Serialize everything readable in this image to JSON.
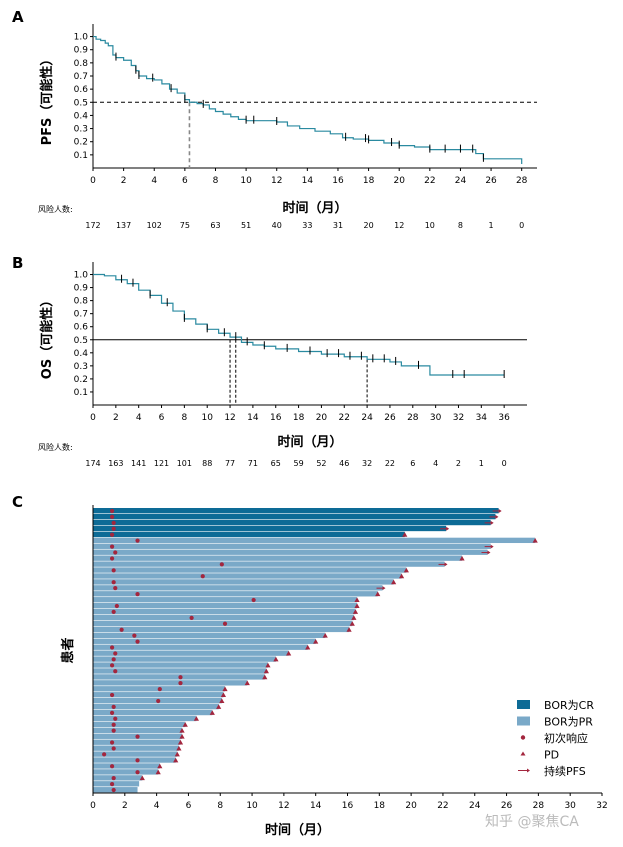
{
  "panel_labels": [
    "A",
    "B",
    "C"
  ],
  "risk_label": "风险人数:",
  "watermark": "知乎 @聚焦CA",
  "chart_data": [
    {
      "type": "line",
      "ylabel": "PFS（可能性）",
      "xlabel": "时间（月）",
      "xlim": [
        0,
        29
      ],
      "ylim": [
        0,
        1.05
      ],
      "xticks": [
        0,
        2,
        4,
        6,
        8,
        10,
        12,
        14,
        16,
        18,
        20,
        22,
        24,
        26,
        28
      ],
      "yticks": [
        0.1,
        0.2,
        0.3,
        0.4,
        0.5,
        0.6,
        0.7,
        0.8,
        0.9,
        1.0
      ],
      "risk_numbers": [
        "172",
        "137",
        "102",
        "75",
        "63",
        "51",
        "40",
        "33",
        "31",
        "20",
        "12",
        "10",
        "8",
        "1",
        "0"
      ],
      "median_x": 6.3,
      "curve_color": "#2a8aa0",
      "curve": [
        [
          0,
          1.0
        ],
        [
          0.2,
          0.98
        ],
        [
          0.5,
          0.97
        ],
        [
          0.8,
          0.95
        ],
        [
          1.0,
          0.93
        ],
        [
          1.3,
          0.86
        ],
        [
          1.5,
          0.84
        ],
        [
          2.0,
          0.82
        ],
        [
          2.5,
          0.78
        ],
        [
          2.8,
          0.74
        ],
        [
          3.0,
          0.7
        ],
        [
          3.5,
          0.68
        ],
        [
          4.0,
          0.67
        ],
        [
          4.5,
          0.64
        ],
        [
          5.0,
          0.6
        ],
        [
          5.5,
          0.57
        ],
        [
          6.0,
          0.52
        ],
        [
          6.3,
          0.5
        ],
        [
          6.8,
          0.49
        ],
        [
          7.2,
          0.48
        ],
        [
          7.6,
          0.45
        ],
        [
          8.0,
          0.43
        ],
        [
          8.5,
          0.41
        ],
        [
          9.0,
          0.39
        ],
        [
          9.5,
          0.37
        ],
        [
          10.0,
          0.36
        ],
        [
          12.0,
          0.35
        ],
        [
          12.7,
          0.32
        ],
        [
          13.5,
          0.3
        ],
        [
          14.5,
          0.28
        ],
        [
          15.5,
          0.26
        ],
        [
          16.3,
          0.23
        ],
        [
          17.0,
          0.22
        ],
        [
          18.0,
          0.21
        ],
        [
          19.0,
          0.19
        ],
        [
          20.0,
          0.17
        ],
        [
          21.0,
          0.16
        ],
        [
          22.0,
          0.14
        ],
        [
          23.0,
          0.14
        ],
        [
          24.8,
          0.14
        ],
        [
          25.0,
          0.11
        ],
        [
          25.5,
          0.07
        ],
        [
          26.5,
          0.07
        ],
        [
          27.2,
          0.07
        ],
        [
          28.0,
          0.07
        ],
        [
          28.0,
          0.03
        ]
      ],
      "censor_x": [
        1.5,
        2.8,
        3.0,
        3.9,
        5.1,
        6.0,
        7.2,
        10.0,
        10.5,
        12.0,
        16.5,
        17.8,
        18.0,
        19.5,
        20.0,
        22.0,
        23.0,
        24.0,
        24.8,
        25.5
      ]
    },
    {
      "type": "line",
      "ylabel": "OS（可能性）",
      "xlabel": "时间（月）",
      "xlim": [
        0,
        38
      ],
      "ylim": [
        0,
        1.05
      ],
      "xticks": [
        0,
        2,
        4,
        6,
        8,
        10,
        12,
        14,
        16,
        18,
        20,
        22,
        24,
        26,
        28,
        30,
        32,
        34,
        36
      ],
      "yticks": [
        0.1,
        0.2,
        0.3,
        0.4,
        0.5,
        0.6,
        0.7,
        0.8,
        0.9,
        1.0
      ],
      "risk_numbers": [
        "174",
        "163",
        "141",
        "121",
        "101",
        "88",
        "77",
        "71",
        "65",
        "59",
        "52",
        "46",
        "32",
        "22",
        "6",
        "4",
        "2",
        "1",
        "0"
      ],
      "median_x": [
        12.0,
        12.5
      ],
      "ref_x": 24.0,
      "curve_color": "#2a8aa0",
      "curve": [
        [
          0,
          1.0
        ],
        [
          1,
          0.99
        ],
        [
          2,
          0.96
        ],
        [
          3,
          0.93
        ],
        [
          4,
          0.88
        ],
        [
          5,
          0.84
        ],
        [
          6,
          0.78
        ],
        [
          7,
          0.72
        ],
        [
          8,
          0.66
        ],
        [
          9,
          0.62
        ],
        [
          10,
          0.58
        ],
        [
          11,
          0.55
        ],
        [
          12,
          0.52
        ],
        [
          13,
          0.48
        ],
        [
          14,
          0.46
        ],
        [
          15,
          0.45
        ],
        [
          16,
          0.43
        ],
        [
          18,
          0.41
        ],
        [
          20,
          0.39
        ],
        [
          22,
          0.37
        ],
        [
          24,
          0.35
        ],
        [
          26,
          0.33
        ],
        [
          27,
          0.3
        ],
        [
          29,
          0.3
        ],
        [
          29.5,
          0.23
        ],
        [
          36,
          0.23
        ]
      ],
      "censor_x": [
        2.5,
        3.5,
        5.0,
        6.5,
        8.0,
        10.0,
        11.5,
        12.5,
        13.5,
        15.0,
        17.0,
        19.0,
        20.5,
        21.5,
        22.5,
        23.5,
        24.5,
        25.5,
        26.5,
        28.5,
        31.5,
        32.5,
        36.0
      ]
    },
    {
      "type": "bar",
      "orientation": "horizontal",
      "ylabel": "患者",
      "xlabel": "时间（月）",
      "xlim": [
        0,
        32
      ],
      "xticks": [
        0,
        2,
        4,
        6,
        8,
        10,
        12,
        14,
        16,
        18,
        20,
        22,
        24,
        26,
        28,
        30,
        32
      ],
      "legend": {
        "position": "bottom-right",
        "items": [
          {
            "label": "BOR为CR",
            "color": "#0d6b96",
            "mark": "rect"
          },
          {
            "label": "BOR为PR",
            "color": "#7aa9c8",
            "mark": "rect"
          },
          {
            "label": "初次响应",
            "color": "#a3263e",
            "mark": "dot"
          },
          {
            "label": "PD",
            "color": "#a3263e",
            "mark": "triangle"
          },
          {
            "label": "持续PFS",
            "color": "#a3263e",
            "mark": "arrow"
          }
        ]
      },
      "cr_color": "#0d6b96",
      "pr_color": "#7aa9c8",
      "marker_color": "#a3263e",
      "bars": [
        {
          "bor": "CR",
          "end": 25.5,
          "resp": 1.2,
          "end_mark": "arrow"
        },
        {
          "bor": "CR",
          "end": 25.3,
          "resp": 1.2,
          "end_mark": "arrow"
        },
        {
          "bor": "CR",
          "end": 25.0,
          "resp": 1.3,
          "end_mark": "arrow"
        },
        {
          "bor": "CR",
          "end": 22.2,
          "resp": 1.3,
          "end_mark": "arrow"
        },
        {
          "bor": "CR",
          "end": 19.6,
          "resp": 1.2,
          "end_mark": "triangle"
        },
        {
          "bor": "PR",
          "end": 27.8,
          "resp": 2.8,
          "end_mark": "triangle"
        },
        {
          "bor": "PR",
          "end": 25.0,
          "resp": 1.2,
          "end_mark": "arrow"
        },
        {
          "bor": "PR",
          "end": 24.8,
          "resp": 1.4,
          "end_mark": "arrow"
        },
        {
          "bor": "PR",
          "end": 23.2,
          "resp": 1.2,
          "end_mark": "triangle"
        },
        {
          "bor": "PR",
          "end": 22.1,
          "resp": 8.1,
          "end_mark": "arrow"
        },
        {
          "bor": "PR",
          "end": 19.7,
          "resp": 1.3,
          "end_mark": "triangle"
        },
        {
          "bor": "PR",
          "end": 19.4,
          "resp": 6.9,
          "end_mark": "triangle"
        },
        {
          "bor": "PR",
          "end": 18.9,
          "resp": 1.3,
          "end_mark": "triangle"
        },
        {
          "bor": "PR",
          "end": 18.2,
          "resp": 1.4,
          "end_mark": "arrow"
        },
        {
          "bor": "PR",
          "end": 17.9,
          "resp": 2.8,
          "end_mark": "triangle"
        },
        {
          "bor": "PR",
          "end": 16.6,
          "resp": 10.1,
          "end_mark": "triangle"
        },
        {
          "bor": "PR",
          "end": 16.6,
          "resp": 1.5,
          "end_mark": "triangle"
        },
        {
          "bor": "PR",
          "end": 16.5,
          "resp": 1.3,
          "end_mark": "triangle"
        },
        {
          "bor": "PR",
          "end": 16.4,
          "resp": 6.2,
          "end_mark": "triangle"
        },
        {
          "bor": "PR",
          "end": 16.3,
          "resp": 8.3,
          "end_mark": "triangle"
        },
        {
          "bor": "PR",
          "end": 16.1,
          "resp": 1.8,
          "end_mark": "triangle"
        },
        {
          "bor": "PR",
          "end": 14.6,
          "resp": 2.6,
          "end_mark": "triangle"
        },
        {
          "bor": "PR",
          "end": 14.0,
          "resp": 2.8,
          "end_mark": "triangle"
        },
        {
          "bor": "PR",
          "end": 13.5,
          "resp": 1.2,
          "end_mark": "triangle"
        },
        {
          "bor": "PR",
          "end": 12.3,
          "resp": 1.4,
          "end_mark": "triangle"
        },
        {
          "bor": "PR",
          "end": 11.5,
          "resp": 1.3,
          "end_mark": "triangle"
        },
        {
          "bor": "PR",
          "end": 11.0,
          "resp": 1.2,
          "end_mark": "triangle"
        },
        {
          "bor": "PR",
          "end": 10.9,
          "resp": 1.4,
          "end_mark": "triangle"
        },
        {
          "bor": "PR",
          "end": 10.8,
          "resp": 5.5,
          "end_mark": "triangle"
        },
        {
          "bor": "PR",
          "end": 9.7,
          "resp": 5.5,
          "end_mark": "triangle"
        },
        {
          "bor": "PR",
          "end": 8.3,
          "resp": 4.2,
          "end_mark": "triangle"
        },
        {
          "bor": "PR",
          "end": 8.2,
          "resp": 1.2,
          "end_mark": "triangle"
        },
        {
          "bor": "PR",
          "end": 8.1,
          "resp": 4.1,
          "end_mark": "triangle"
        },
        {
          "bor": "PR",
          "end": 7.9,
          "resp": 1.3,
          "end_mark": "triangle"
        },
        {
          "bor": "PR",
          "end": 7.5,
          "resp": 1.2,
          "end_mark": "triangle"
        },
        {
          "bor": "PR",
          "end": 6.5,
          "resp": 1.4,
          "end_mark": "triangle"
        },
        {
          "bor": "PR",
          "end": 5.8,
          "resp": 1.3,
          "end_mark": "triangle"
        },
        {
          "bor": "PR",
          "end": 5.6,
          "resp": 1.3,
          "end_mark": "triangle"
        },
        {
          "bor": "PR",
          "end": 5.6,
          "resp": 2.8,
          "end_mark": "triangle"
        },
        {
          "bor": "PR",
          "end": 5.5,
          "resp": 1.2,
          "end_mark": "triangle"
        },
        {
          "bor": "PR",
          "end": 5.4,
          "resp": 1.3,
          "end_mark": "triangle"
        },
        {
          "bor": "PR",
          "end": 5.3,
          "resp": 0.7,
          "end_mark": "triangle"
        },
        {
          "bor": "PR",
          "end": 5.2,
          "resp": 2.8,
          "end_mark": "triangle"
        },
        {
          "bor": "PR",
          "end": 4.2,
          "resp": 1.2,
          "end_mark": "triangle"
        },
        {
          "bor": "PR",
          "end": 4.1,
          "resp": 2.8,
          "end_mark": "triangle"
        },
        {
          "bor": "PR",
          "end": 3.1,
          "resp": 1.3,
          "end_mark": "triangle"
        },
        {
          "bor": "PR",
          "end": 2.9,
          "resp": 1.2,
          "end_mark": "none"
        },
        {
          "bor": "PR",
          "end": 2.8,
          "resp": 1.3,
          "end_mark": "none"
        }
      ]
    }
  ]
}
